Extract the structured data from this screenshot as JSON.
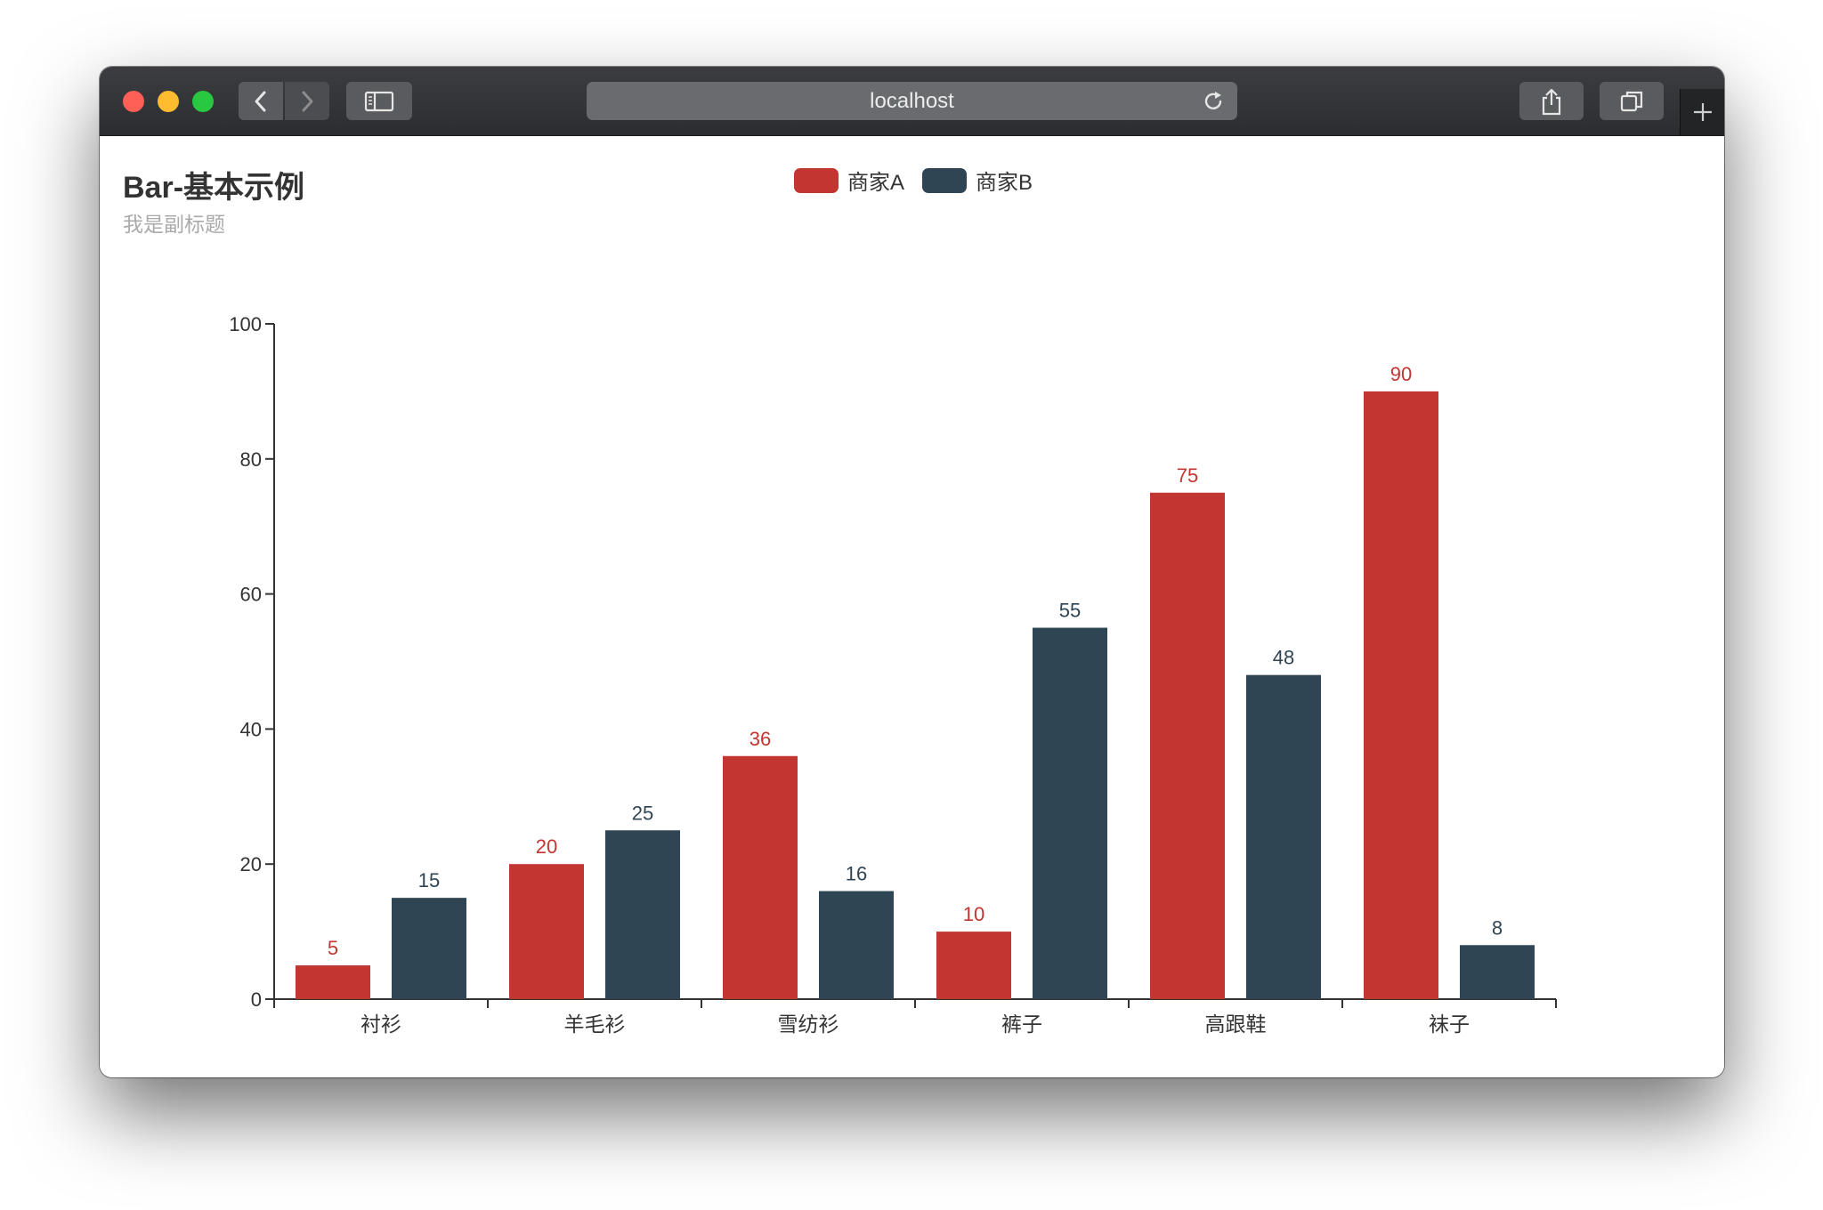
{
  "browser": {
    "url": "localhost"
  },
  "chart_data": {
    "type": "bar",
    "title": "Bar-基本示例",
    "subtitle": "我是副标题",
    "categories": [
      "衬衫",
      "羊毛衫",
      "雪纺衫",
      "裤子",
      "高跟鞋",
      "袜子"
    ],
    "series": [
      {
        "name": "商家A",
        "values": [
          5,
          20,
          36,
          10,
          75,
          90
        ],
        "color": "#c23531"
      },
      {
        "name": "商家B",
        "values": [
          15,
          25,
          16,
          55,
          48,
          8
        ],
        "color": "#2f4554"
      }
    ],
    "ylim": [
      0,
      100
    ],
    "yticks": [
      0,
      20,
      40,
      60,
      80,
      100
    ],
    "legend_position": "top-center",
    "grid": false
  }
}
